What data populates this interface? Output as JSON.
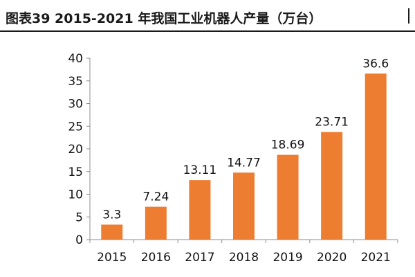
{
  "header": {
    "title": "图表39    2015-2021 年我国工业机器人产量（万台）"
  },
  "colors": {
    "bar": "#ED7D31",
    "axis": "#8C8C8C",
    "text": "#111111"
  },
  "chart_data": {
    "type": "bar",
    "title": "",
    "xlabel": "",
    "ylabel": "",
    "categories": [
      "2015",
      "2016",
      "2017",
      "2018",
      "2019",
      "2020",
      "2021"
    ],
    "values": [
      3.3,
      7.24,
      13.11,
      14.77,
      18.69,
      23.71,
      36.6
    ],
    "data_labels": [
      "3.3",
      "7.24",
      "13.11",
      "14.77",
      "18.69",
      "23.71",
      "36.6"
    ],
    "ylim": [
      0,
      40
    ],
    "yticks": [
      0,
      5,
      10,
      15,
      20,
      25,
      30,
      35,
      40
    ],
    "grid": false,
    "legend": "none"
  }
}
